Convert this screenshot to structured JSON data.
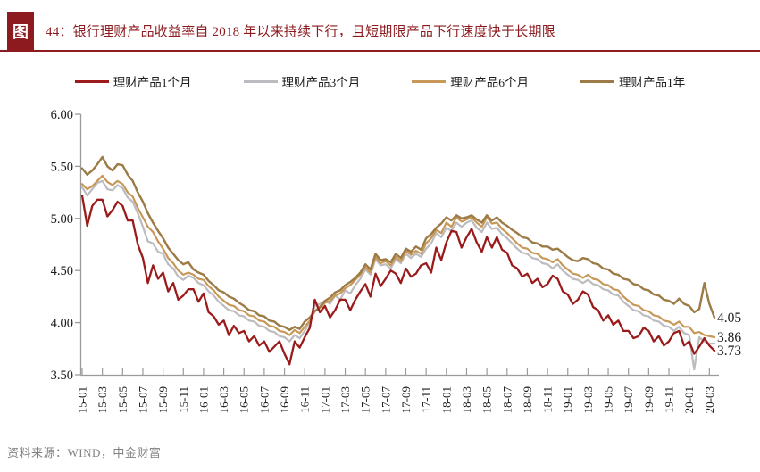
{
  "header": {
    "badge": "图",
    "title": "44：银行理财产品收益率自 2018 年以来持续下行，且短期限产品下行速度快于长期限"
  },
  "footer": {
    "source": "资料来源：WIND，中金财富"
  },
  "colors": {
    "accent_maroon": "#8c1a1e",
    "axis_gray": "#9a9a9a",
    "tick_text": "#1a1a1a",
    "source_gray": "#808080"
  },
  "chart_data": {
    "type": "line",
    "title": "",
    "xlabel": "",
    "ylabel": "",
    "ylim": [
      3.5,
      6.0
    ],
    "grid": false,
    "legend_position": "top",
    "x_start": "2015-01",
    "x_end": "2020-03",
    "points_per_month": 2,
    "y_ticks": [
      {
        "value": 6.0,
        "label": "6.00"
      },
      {
        "value": 5.5,
        "label": "5.50"
      },
      {
        "value": 5.0,
        "label": "5.00"
      },
      {
        "value": 4.5,
        "label": "4.50"
      },
      {
        "value": 4.0,
        "label": "4.00"
      },
      {
        "value": 3.5,
        "label": "3.50"
      }
    ],
    "x_tick_labels": [
      "15-01",
      "15-03",
      "15-05",
      "15-07",
      "15-09",
      "15-11",
      "16-01",
      "16-03",
      "16-05",
      "16-07",
      "16-09",
      "16-11",
      "17-01",
      "17-03",
      "17-05",
      "17-07",
      "17-09",
      "17-11",
      "18-01",
      "18-03",
      "18-05",
      "18-07",
      "18-09",
      "18-11",
      "19-01",
      "19-03",
      "19-05",
      "19-07",
      "19-09",
      "19-11",
      "20-01",
      "20-03"
    ],
    "end_labels": [
      {
        "text": "4.05",
        "value": 4.05
      },
      {
        "text": "3.86",
        "value": 3.86
      },
      {
        "text": "3.73",
        "value": 3.73
      }
    ],
    "series": [
      {
        "key": "1m",
        "name": "理财产品1个月",
        "color": "#9b1b1b",
        "width": 2.3,
        "values": [
          5.22,
          4.93,
          5.12,
          5.18,
          5.18,
          5.02,
          5.08,
          5.16,
          5.12,
          4.98,
          4.98,
          4.75,
          4.62,
          4.38,
          4.55,
          4.42,
          4.48,
          4.3,
          4.38,
          4.22,
          4.26,
          4.32,
          4.32,
          4.2,
          4.28,
          4.1,
          4.06,
          3.98,
          4.02,
          3.88,
          3.97,
          3.9,
          3.92,
          3.82,
          3.87,
          3.78,
          3.82,
          3.72,
          3.77,
          3.82,
          3.7,
          3.6,
          3.82,
          3.76,
          3.86,
          3.95,
          4.22,
          4.1,
          4.16,
          4.05,
          4.12,
          4.22,
          4.22,
          4.12,
          4.22,
          4.3,
          4.37,
          4.25,
          4.47,
          4.35,
          4.42,
          4.5,
          4.47,
          4.38,
          4.52,
          4.44,
          4.47,
          4.55,
          4.57,
          4.48,
          4.72,
          4.6,
          4.77,
          4.88,
          4.87,
          4.72,
          4.82,
          4.9,
          4.77,
          4.68,
          4.82,
          4.72,
          4.82,
          4.7,
          4.67,
          4.55,
          4.52,
          4.44,
          4.47,
          4.38,
          4.42,
          4.34,
          4.37,
          4.45,
          4.42,
          4.3,
          4.27,
          4.18,
          4.22,
          4.3,
          4.27,
          4.15,
          4.12,
          4.02,
          4.07,
          3.98,
          4.02,
          3.92,
          3.92,
          3.85,
          3.87,
          3.95,
          3.92,
          3.82,
          3.87,
          3.78,
          3.82,
          3.9,
          3.92,
          3.78,
          3.82,
          3.7,
          3.77,
          3.85,
          3.78,
          3.73
        ]
      },
      {
        "key": "3m",
        "name": "理财产品3个月",
        "color": "#bcbcc0",
        "width": 2.2,
        "values": [
          5.3,
          5.22,
          5.28,
          5.34,
          5.36,
          5.28,
          5.27,
          5.32,
          5.29,
          5.2,
          5.16,
          5.05,
          4.92,
          4.78,
          4.76,
          4.68,
          4.66,
          4.56,
          4.52,
          4.44,
          4.41,
          4.45,
          4.43,
          4.38,
          4.36,
          4.3,
          4.26,
          4.2,
          4.16,
          4.12,
          4.11,
          4.07,
          4.06,
          4.02,
          4.01,
          3.97,
          3.96,
          3.92,
          3.91,
          3.87,
          3.86,
          3.82,
          3.88,
          3.85,
          3.92,
          4.0,
          4.16,
          4.18,
          4.21,
          4.18,
          4.26,
          4.22,
          4.31,
          4.28,
          4.36,
          4.42,
          4.51,
          4.46,
          4.61,
          4.55,
          4.56,
          4.52,
          4.61,
          4.57,
          4.66,
          4.62,
          4.66,
          4.63,
          4.71,
          4.76,
          4.86,
          4.82,
          4.91,
          4.88,
          4.96,
          4.92,
          4.96,
          4.98,
          4.91,
          4.87,
          4.96,
          4.9,
          4.91,
          4.85,
          4.81,
          4.76,
          4.71,
          4.67,
          4.66,
          4.62,
          4.61,
          4.57,
          4.56,
          4.52,
          4.56,
          4.5,
          4.46,
          4.42,
          4.41,
          4.38,
          4.41,
          4.37,
          4.36,
          4.32,
          4.31,
          4.27,
          4.26,
          4.2,
          4.16,
          4.12,
          4.11,
          4.07,
          4.06,
          4.02,
          4.01,
          3.97,
          3.96,
          3.92,
          3.96,
          3.9,
          3.88,
          3.55,
          3.86,
          3.82,
          3.8,
          3.8
        ]
      },
      {
        "key": "6m",
        "name": "理财产品6个月",
        "color": "#c89858",
        "width": 2.2,
        "values": [
          5.33,
          5.28,
          5.31,
          5.36,
          5.41,
          5.35,
          5.32,
          5.36,
          5.33,
          5.25,
          5.21,
          5.1,
          5.01,
          4.92,
          4.87,
          4.78,
          4.71,
          4.62,
          4.57,
          4.5,
          4.46,
          4.48,
          4.46,
          4.42,
          4.41,
          4.35,
          4.31,
          4.25,
          4.21,
          4.17,
          4.16,
          4.12,
          4.11,
          4.07,
          4.06,
          4.02,
          4.01,
          3.97,
          3.96,
          3.92,
          3.91,
          3.88,
          3.93,
          3.9,
          3.96,
          4.02,
          4.11,
          4.14,
          4.19,
          4.21,
          4.26,
          4.28,
          4.33,
          4.36,
          4.41,
          4.46,
          4.53,
          4.48,
          4.63,
          4.57,
          4.59,
          4.55,
          4.63,
          4.59,
          4.69,
          4.65,
          4.69,
          4.66,
          4.76,
          4.81,
          4.89,
          4.86,
          4.96,
          4.92,
          5.01,
          4.97,
          4.99,
          5.01,
          4.96,
          4.92,
          5.01,
          4.95,
          4.96,
          4.9,
          4.86,
          4.81,
          4.76,
          4.72,
          4.71,
          4.67,
          4.66,
          4.62,
          4.61,
          4.58,
          4.61,
          4.55,
          4.51,
          4.47,
          4.46,
          4.43,
          4.46,
          4.42,
          4.41,
          4.37,
          4.36,
          4.32,
          4.31,
          4.25,
          4.21,
          4.17,
          4.16,
          4.12,
          4.11,
          4.07,
          4.06,
          4.02,
          4.01,
          3.98,
          4.01,
          3.96,
          3.96,
          3.9,
          3.91,
          3.88,
          3.87,
          3.86
        ]
      },
      {
        "key": "1y",
        "name": "理财产品1年",
        "color": "#9c7b46",
        "width": 2.4,
        "values": [
          5.48,
          5.42,
          5.46,
          5.52,
          5.59,
          5.5,
          5.46,
          5.52,
          5.51,
          5.42,
          5.36,
          5.25,
          5.16,
          5.05,
          4.96,
          4.88,
          4.81,
          4.72,
          4.66,
          4.6,
          4.56,
          4.58,
          4.51,
          4.48,
          4.46,
          4.4,
          4.36,
          4.31,
          4.29,
          4.25,
          4.23,
          4.19,
          4.16,
          4.12,
          4.11,
          4.07,
          4.06,
          4.02,
          4.01,
          3.97,
          3.96,
          3.93,
          3.96,
          3.94,
          4.01,
          4.05,
          4.11,
          4.15,
          4.21,
          4.24,
          4.29,
          4.31,
          4.36,
          4.39,
          4.43,
          4.48,
          4.56,
          4.51,
          4.66,
          4.6,
          4.61,
          4.58,
          4.66,
          4.62,
          4.71,
          4.68,
          4.73,
          4.7,
          4.81,
          4.85,
          4.91,
          4.95,
          5.01,
          4.98,
          5.03,
          5.0,
          5.01,
          5.03,
          4.99,
          4.96,
          5.03,
          4.98,
          5.01,
          4.96,
          4.93,
          4.89,
          4.86,
          4.82,
          4.81,
          4.77,
          4.76,
          4.73,
          4.73,
          4.7,
          4.71,
          4.67,
          4.63,
          4.6,
          4.59,
          4.62,
          4.61,
          4.57,
          4.56,
          4.52,
          4.51,
          4.47,
          4.46,
          4.42,
          4.41,
          4.37,
          4.36,
          4.32,
          4.31,
          4.27,
          4.26,
          4.22,
          4.21,
          4.18,
          4.23,
          4.18,
          4.16,
          4.1,
          4.13,
          4.38,
          4.18,
          4.05
        ]
      }
    ]
  }
}
